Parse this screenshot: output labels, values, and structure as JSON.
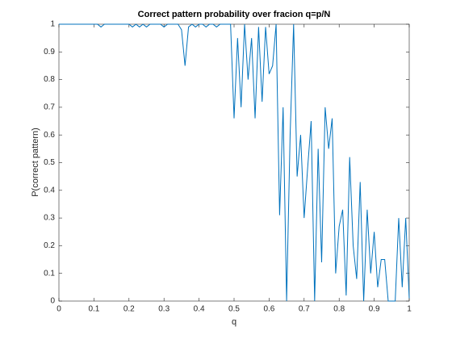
{
  "chart_data": {
    "type": "line",
    "title": "Correct pattern probability over fracion q=p/N",
    "x_label": "q",
    "y_label": "P(correct pattern)",
    "x": [
      0,
      0.01,
      0.02,
      0.03,
      0.04,
      0.05,
      0.06,
      0.07,
      0.08,
      0.09,
      0.1,
      0.11,
      0.12,
      0.13,
      0.14,
      0.15,
      0.16,
      0.17,
      0.18,
      0.19,
      0.2,
      0.21,
      0.22,
      0.23,
      0.24,
      0.25,
      0.26,
      0.27,
      0.28,
      0.29,
      0.3,
      0.31,
      0.32,
      0.33,
      0.34,
      0.35,
      0.36,
      0.37,
      0.38,
      0.39,
      0.4,
      0.41,
      0.42,
      0.43,
      0.44,
      0.45,
      0.46,
      0.47,
      0.48,
      0.49,
      0.5,
      0.51,
      0.52,
      0.53,
      0.54,
      0.55,
      0.56,
      0.57,
      0.58,
      0.59,
      0.6,
      0.61,
      0.62,
      0.63,
      0.64,
      0.65,
      0.66,
      0.67,
      0.68,
      0.69,
      0.7,
      0.71,
      0.72,
      0.73,
      0.74,
      0.75,
      0.76,
      0.77,
      0.78,
      0.79,
      0.8,
      0.81,
      0.82,
      0.83,
      0.84,
      0.85,
      0.86,
      0.87,
      0.88,
      0.89,
      0.9,
      0.91,
      0.92,
      0.93,
      0.94,
      0.95,
      0.96,
      0.97,
      0.98,
      0.99,
      1
    ],
    "series": [
      {
        "name": "P",
        "color": "#0072bd",
        "values": [
          1,
          1,
          1,
          1,
          1,
          1,
          1,
          1,
          1,
          1,
          1,
          1,
          0.99,
          1,
          1,
          1,
          1,
          1,
          1,
          1,
          1,
          0.99,
          1,
          0.99,
          1,
          0.99,
          1,
          1,
          1,
          1,
          0.99,
          1,
          1,
          1,
          1,
          0.98,
          0.85,
          0.99,
          1,
          0.99,
          1,
          1,
          0.99,
          1,
          1,
          0.99,
          1,
          1,
          1,
          1,
          0.66,
          0.95,
          0.7,
          1,
          0.8,
          0.95,
          0.66,
          0.99,
          0.72,
          0.99,
          0.82,
          0.85,
          1,
          0.31,
          0.7,
          0,
          0.6,
          1,
          0.45,
          0.6,
          0.3,
          0.48,
          0.65,
          0,
          0.55,
          0.14,
          0.7,
          0.55,
          0.66,
          0.1,
          0.27,
          0.33,
          0.02,
          0.52,
          0.2,
          0.08,
          0.43,
          0,
          0.33,
          0.1,
          0.25,
          0.05,
          0.15,
          0.15,
          0,
          0,
          0,
          0.3,
          0.05,
          0.3,
          0.01
        ]
      }
    ],
    "xlim": [
      0,
      1
    ],
    "xticks": [
      0,
      0.1,
      0.2,
      0.3,
      0.4,
      0.5,
      0.6,
      0.7,
      0.8,
      0.9,
      1
    ],
    "ylim": [
      0,
      1
    ],
    "yticks": [
      0,
      0.1,
      0.2,
      0.3,
      0.4,
      0.5,
      0.6,
      0.7,
      0.8,
      0.9,
      1
    ]
  }
}
